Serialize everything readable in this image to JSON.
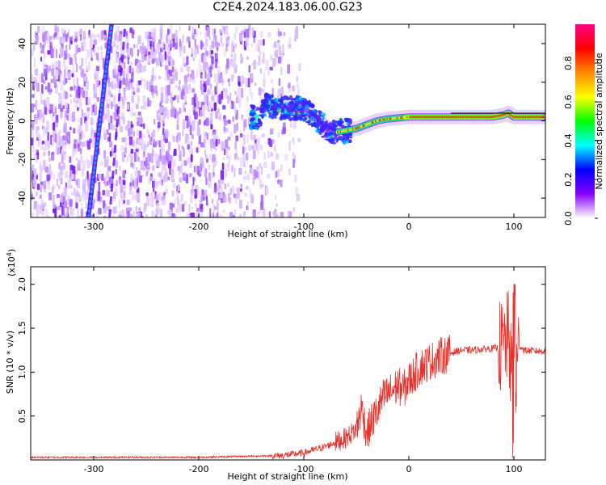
{
  "title": "C2E4.2024.183.06.00.G23",
  "chart_data": [
    {
      "type": "heatmap",
      "xlabel": "Height of straight line (km)",
      "ylabel": "Frequency (Hz)",
      "xlim": [
        -360,
        130
      ],
      "ylim": [
        -50,
        50
      ],
      "x_ticks": [
        -300,
        -200,
        -100,
        0,
        100
      ],
      "y_ticks": [
        -40,
        -20,
        0,
        20,
        40
      ],
      "grid": false,
      "colorbar": {
        "label": "Normalized spectral amplitude",
        "range": [
          0,
          1
        ],
        "ticks": [
          "0.0",
          "0.2",
          "0.4",
          "0.6",
          "0.8"
        ],
        "tick_values": [
          0.0,
          0.2,
          0.4,
          0.6,
          0.8
        ],
        "colors": [
          "#ffffff",
          "#8800ff",
          "#0000ff",
          "#00ffff",
          "#00ff00",
          "#ffff00",
          "#ff8800",
          "#ff0000",
          "#ff0088"
        ]
      },
      "features": {
        "streak1": {
          "x": [
            -305,
            -283
          ],
          "y": [
            -50,
            50
          ]
        },
        "streak2": {
          "x": [
            -285,
            -270
          ],
          "y": [
            -50,
            50
          ]
        },
        "ridge_x": [
          -140,
          -120,
          -100,
          -90,
          -80,
          -70,
          -60,
          -50,
          -40,
          -30,
          -20,
          -10,
          0,
          20,
          50,
          80,
          90,
          95,
          100,
          130
        ],
        "ridge_y": [
          8,
          7,
          6,
          2,
          -3,
          -6,
          -5,
          -4,
          -2,
          0,
          1,
          1.5,
          2,
          2,
          2,
          2,
          3,
          4,
          2,
          2
        ]
      }
    },
    {
      "type": "line",
      "xlabel": "Height of straight line (km)",
      "ylabel": "SNR (10 * v/v)",
      "yscale_label": "(x10",
      "yscale_exp": "4",
      "yscale_close": ")",
      "xlim": [
        -360,
        130
      ],
      "ylim": [
        0,
        2.2
      ],
      "x_ticks": [
        -300,
        -200,
        -100,
        0,
        100
      ],
      "y_ticks": [
        "0.5",
        "1.0",
        "1.5",
        "2.0"
      ],
      "y_tick_values": [
        0.5,
        1.0,
        1.5,
        2.0
      ],
      "color": "#e8312b",
      "grid": false,
      "series": [
        {
          "x": [
            -360,
            -200,
            -120,
            -100,
            -80,
            -60,
            -50,
            -45,
            -40,
            -35,
            -30,
            -25,
            -20,
            -15,
            -10,
            -5,
            0,
            10,
            20,
            30,
            40,
            50,
            60,
            70,
            80,
            90,
            95,
            100,
            105,
            110,
            120,
            130
          ],
          "y": [
            0.03,
            0.03,
            0.05,
            0.08,
            0.15,
            0.25,
            0.35,
            0.6,
            0.3,
            0.45,
            0.55,
            0.7,
            0.75,
            0.8,
            0.85,
            0.8,
            0.9,
            1.05,
            1.12,
            1.18,
            1.22,
            1.25,
            1.25,
            1.26,
            1.27,
            1.28,
            1.4,
            0.6,
            1.3,
            1.25,
            1.24,
            1.24
          ]
        }
      ]
    }
  ]
}
